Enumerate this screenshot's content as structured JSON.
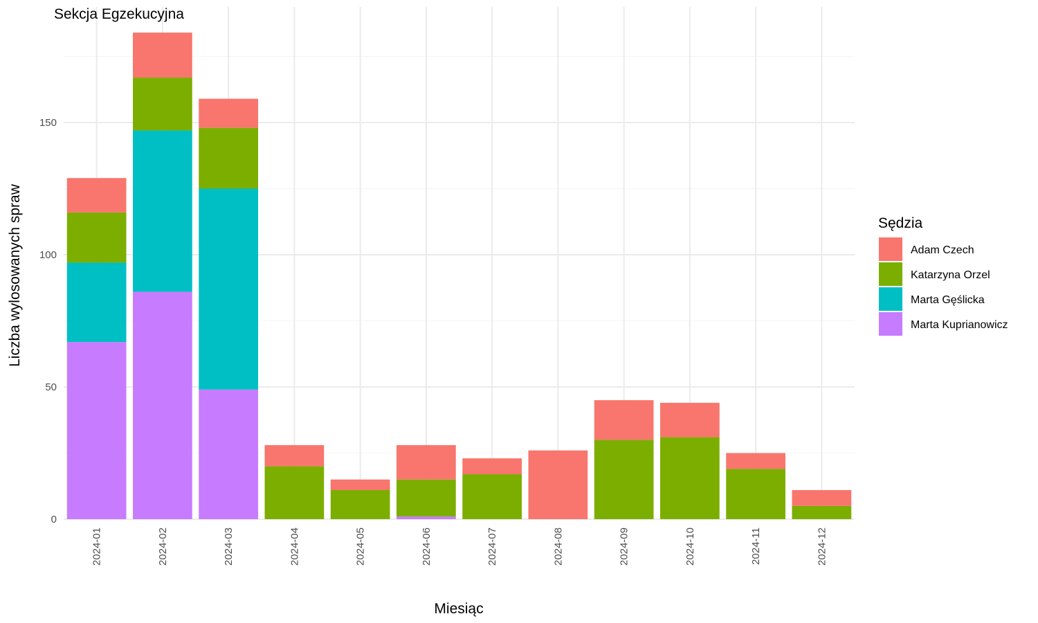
{
  "chart_data": {
    "type": "bar",
    "stacked": true,
    "title": "Sekcja Egzekucyjna",
    "xlabel": "Miesiąc",
    "ylabel": "Liczba wylosowanych spraw",
    "legend_title": "Sędzia",
    "legend_position": "right",
    "grid": true,
    "ylim": [
      0,
      184
    ],
    "yticks": [
      0,
      50,
      100,
      150
    ],
    "categories": [
      "2024-01",
      "2024-02",
      "2024-03",
      "2024-04",
      "2024-05",
      "2024-06",
      "2024-07",
      "2024-08",
      "2024-09",
      "2024-10",
      "2024-11",
      "2024-12"
    ],
    "series": [
      {
        "name": "Marta Kuprianowicz",
        "color": "#C77CFF",
        "values": [
          67,
          86,
          49,
          0,
          0,
          1,
          0,
          0,
          0,
          0,
          0,
          0
        ]
      },
      {
        "name": "Marta Gęślicka",
        "color": "#00BFC4",
        "values": [
          30,
          61,
          76,
          0,
          0,
          0,
          0,
          0,
          0,
          0,
          0,
          0
        ]
      },
      {
        "name": "Katarzyna Orzel",
        "color": "#7CAE00",
        "values": [
          19,
          20,
          23,
          20,
          11,
          14,
          17,
          0,
          30,
          31,
          19,
          5
        ]
      },
      {
        "name": "Adam Czech",
        "color": "#F8766D",
        "values": [
          13,
          17,
          11,
          8,
          4,
          13,
          6,
          26,
          15,
          13,
          6,
          6
        ]
      }
    ],
    "legend_order": [
      "Adam Czech",
      "Katarzyna Orzel",
      "Marta Gęślicka",
      "Marta Kuprianowicz"
    ]
  }
}
